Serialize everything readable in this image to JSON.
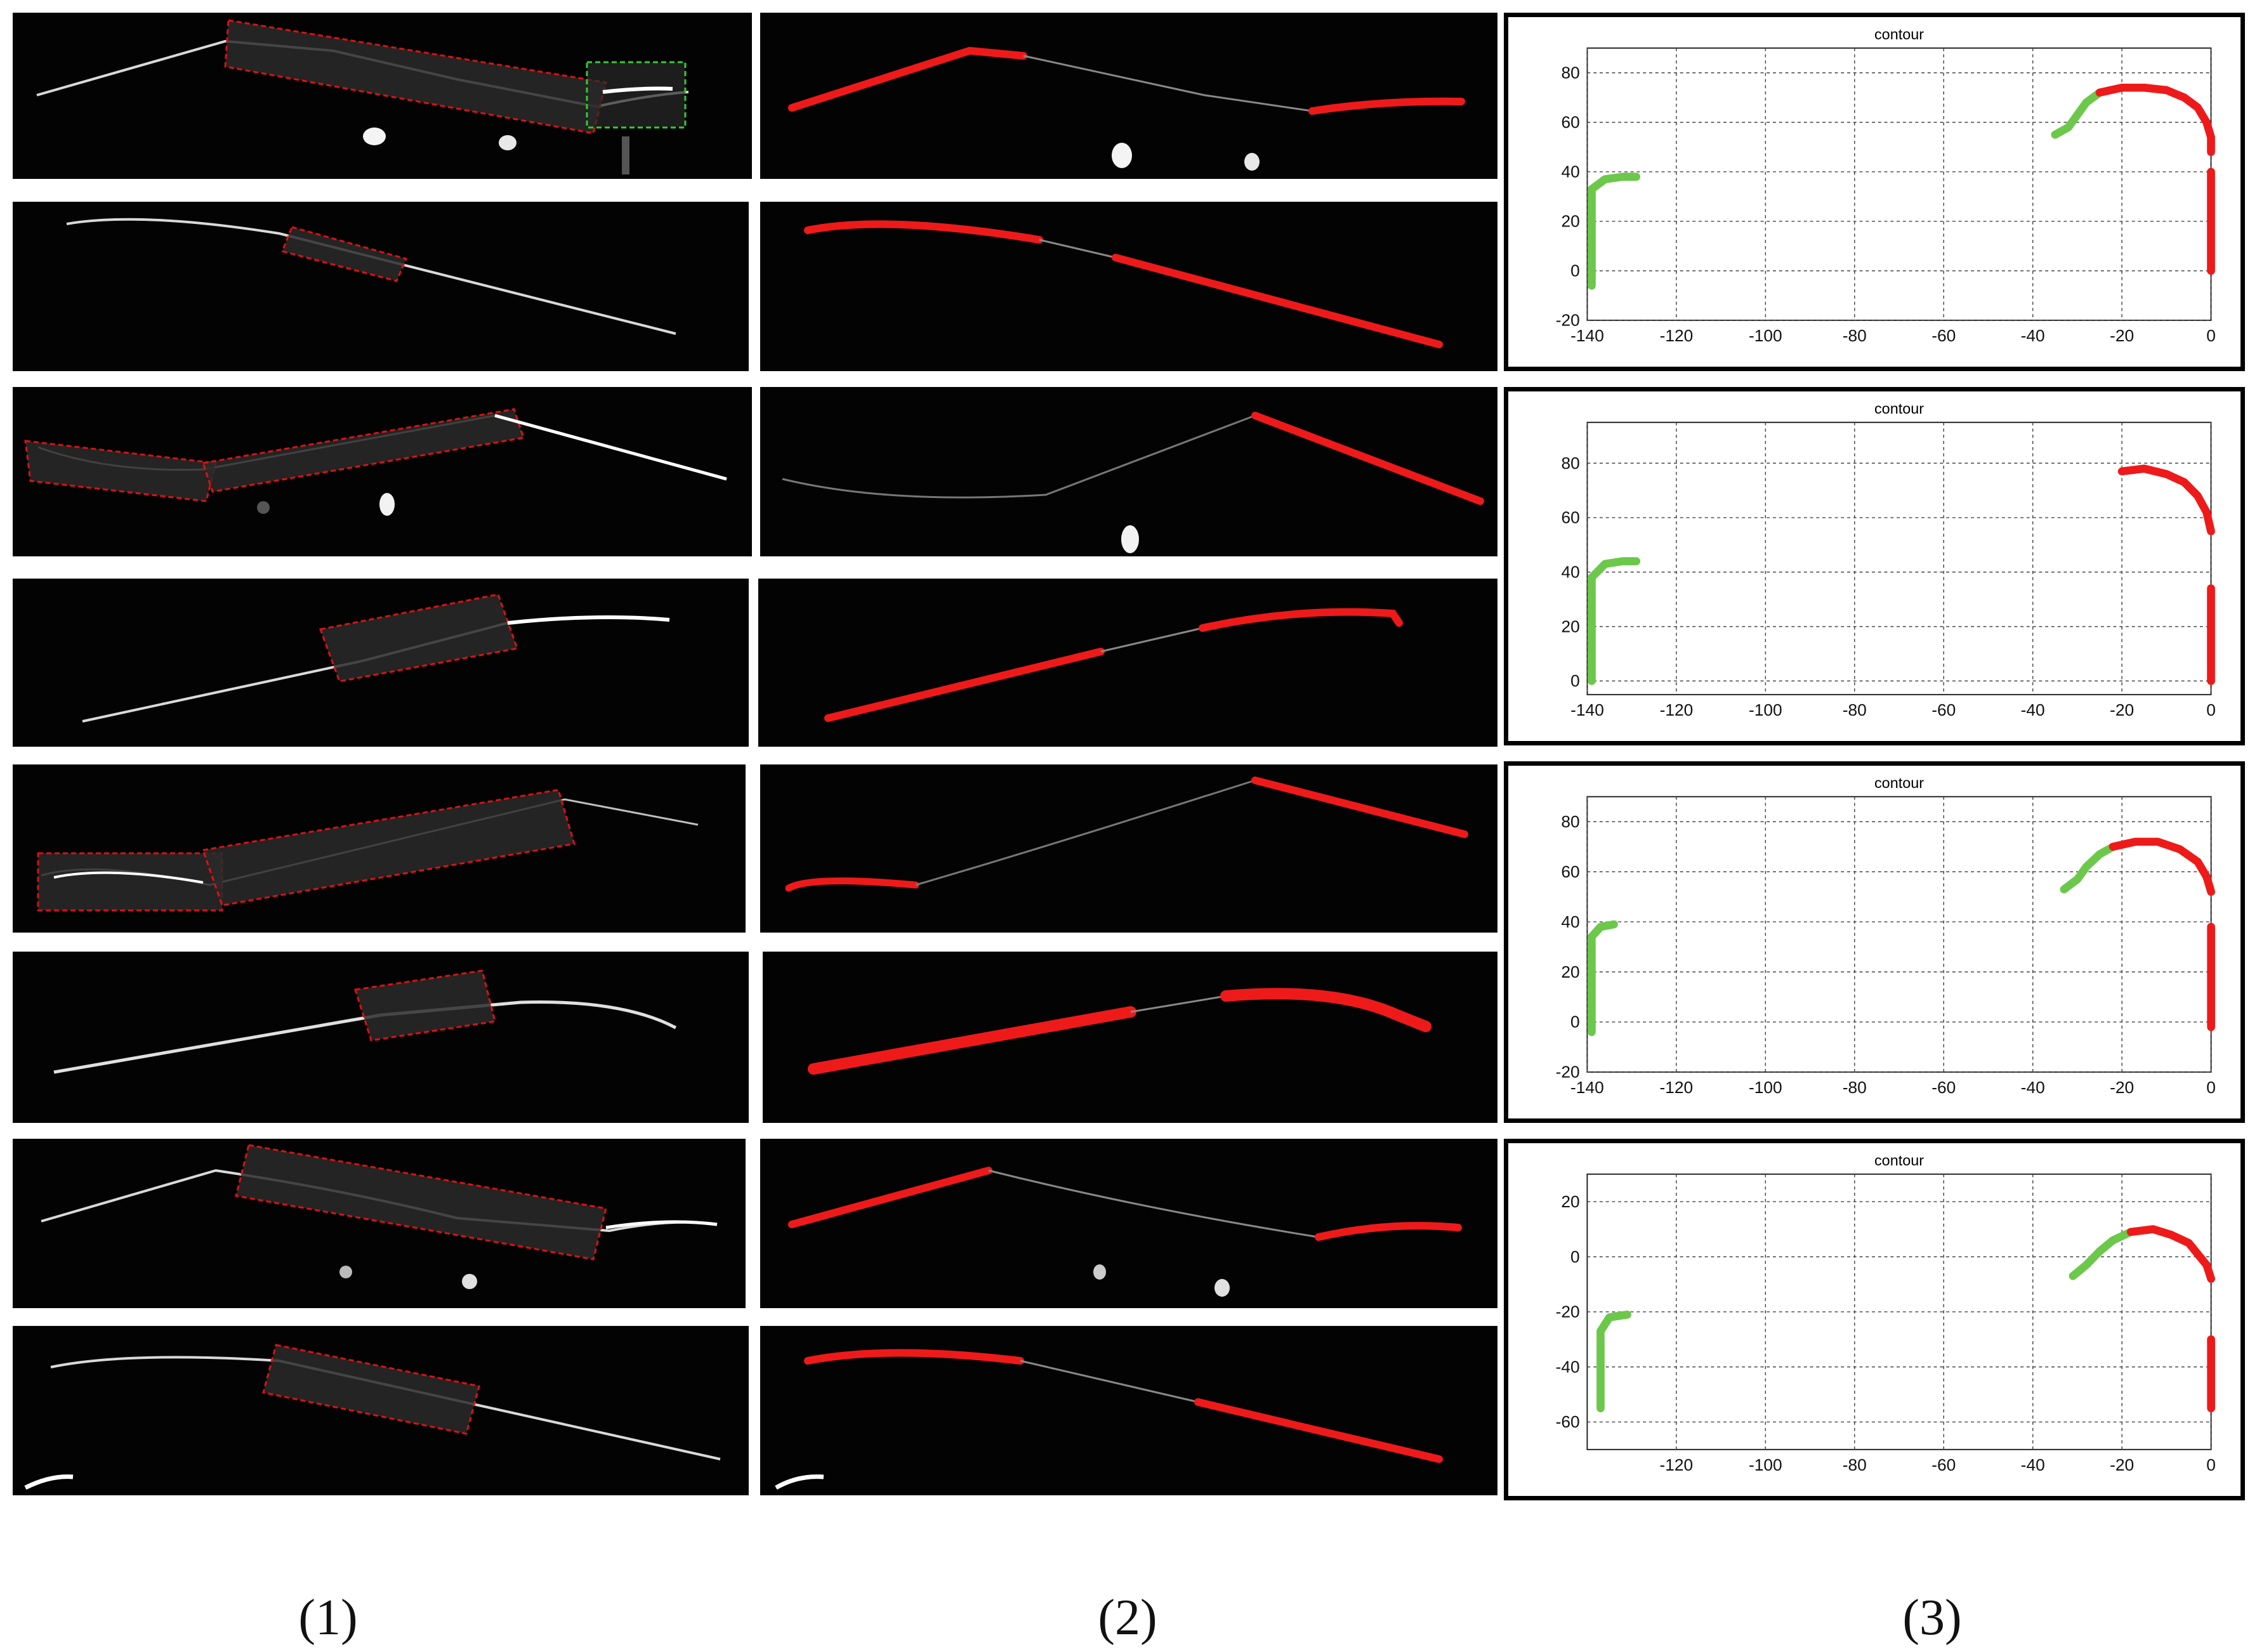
{
  "colors": {
    "background": "#030303",
    "wire": "#d9d9d9",
    "detected": "#ee1a1a",
    "tracked": "#6cc84a",
    "roi_box": "#d11",
    "roi_green": "#3c3"
  },
  "column_labels": [
    "(1)",
    "(2)",
    "(3)"
  ],
  "chart_data": [
    {
      "type": "scatter",
      "title": "contour",
      "xlabel": "",
      "ylabel": "",
      "xlim": [
        -140,
        0
      ],
      "ylim": [
        -20,
        90
      ],
      "x_ticks": [
        -140,
        -120,
        -100,
        -80,
        -60,
        -40,
        -20,
        0
      ],
      "y_ticks": [
        -20,
        0,
        20,
        40,
        60,
        80
      ],
      "tick_labels_x": [
        "-140",
        "-120",
        "-100",
        "-80",
        "-60",
        "-40",
        "-20",
        "0"
      ],
      "tick_labels_y": [
        "-20",
        "0",
        "20",
        "40",
        "60",
        "80"
      ],
      "grid": true,
      "series": [
        {
          "color": "#6cc84a",
          "points": [
            [
              -139,
              -6
            ],
            [
              -139,
              10
            ],
            [
              -139,
              25
            ],
            [
              -139,
              33
            ],
            [
              -136,
              37
            ],
            [
              -132,
              38
            ],
            [
              -129,
              38
            ]
          ]
        },
        {
          "color": "#6cc84a",
          "points": [
            [
              -35,
              55
            ],
            [
              -32,
              58
            ],
            [
              -30,
              63
            ],
            [
              -28,
              68
            ],
            [
              -25,
              72
            ]
          ]
        },
        {
          "color": "#ee1a1a",
          "points": [
            [
              -25,
              72
            ],
            [
              -20,
              74
            ],
            [
              -15,
              74
            ],
            [
              -10,
              73
            ],
            [
              -6,
              70
            ],
            [
              -3,
              66
            ],
            [
              -1,
              60
            ],
            [
              0,
              54
            ],
            [
              0,
              48
            ]
          ]
        },
        {
          "color": "#ee1a1a",
          "points": [
            [
              0,
              40
            ],
            [
              0,
              30
            ],
            [
              0,
              20
            ],
            [
              0,
              10
            ],
            [
              0,
              0
            ]
          ]
        }
      ]
    },
    {
      "type": "scatter",
      "title": "contour",
      "xlabel": "",
      "ylabel": "",
      "xlim": [
        -140,
        0
      ],
      "ylim": [
        -5,
        95
      ],
      "x_ticks": [
        -140,
        -120,
        -100,
        -80,
        -60,
        -40,
        -20,
        0
      ],
      "y_ticks": [
        0,
        20,
        40,
        60,
        80
      ],
      "tick_labels_x": [
        "-140",
        "-120",
        "-100",
        "-80",
        "-60",
        "-40",
        "-20",
        "0"
      ],
      "tick_labels_y": [
        "0",
        "20",
        "40",
        "60",
        "80"
      ],
      "grid": true,
      "series": [
        {
          "color": "#6cc84a",
          "points": [
            [
              -139,
              0
            ],
            [
              -139,
              12
            ],
            [
              -139,
              25
            ],
            [
              -139,
              38
            ],
            [
              -136,
              43
            ],
            [
              -132,
              44
            ],
            [
              -129,
              44
            ]
          ]
        },
        {
          "color": "#ee1a1a",
          "points": [
            [
              -20,
              77
            ],
            [
              -15,
              78
            ],
            [
              -10,
              76
            ],
            [
              -6,
              73
            ],
            [
              -3,
              68
            ],
            [
              -1,
              62
            ],
            [
              0,
              55
            ]
          ]
        },
        {
          "color": "#ee1a1a",
          "points": [
            [
              0,
              34
            ],
            [
              0,
              24
            ],
            [
              0,
              12
            ],
            [
              0,
              0
            ]
          ]
        }
      ]
    },
    {
      "type": "scatter",
      "title": "contour",
      "xlabel": "",
      "ylabel": "",
      "xlim": [
        -140,
        0
      ],
      "ylim": [
        -20,
        90
      ],
      "x_ticks": [
        -140,
        -120,
        -100,
        -80,
        -60,
        -40,
        -20,
        0
      ],
      "y_ticks": [
        -20,
        0,
        20,
        40,
        60,
        80
      ],
      "tick_labels_x": [
        "-140",
        "-120",
        "-100",
        "-80",
        "-60",
        "-40",
        "-20",
        "0"
      ],
      "tick_labels_y": [
        "-20",
        "0",
        "20",
        "40",
        "60",
        "80"
      ],
      "grid": true,
      "series": [
        {
          "color": "#6cc84a",
          "points": [
            [
              -139,
              -4
            ],
            [
              -139,
              10
            ],
            [
              -139,
              22
            ],
            [
              -139,
              34
            ],
            [
              -137,
              38
            ],
            [
              -134,
              39
            ]
          ]
        },
        {
          "color": "#6cc84a",
          "points": [
            [
              -33,
              53
            ],
            [
              -30,
              57
            ],
            [
              -28,
              62
            ],
            [
              -25,
              67
            ],
            [
              -22,
              70
            ]
          ]
        },
        {
          "color": "#ee1a1a",
          "points": [
            [
              -22,
              70
            ],
            [
              -17,
              72
            ],
            [
              -12,
              72
            ],
            [
              -7,
              69
            ],
            [
              -3,
              64
            ],
            [
              -1,
              58
            ],
            [
              0,
              52
            ]
          ]
        },
        {
          "color": "#ee1a1a",
          "points": [
            [
              0,
              38
            ],
            [
              0,
              26
            ],
            [
              0,
              14
            ],
            [
              0,
              0
            ],
            [
              0,
              -2
            ]
          ]
        }
      ]
    },
    {
      "type": "scatter",
      "title": "contour",
      "xlabel": "",
      "ylabel": "",
      "xlim": [
        -140,
        0
      ],
      "ylim": [
        -70,
        30
      ],
      "x_ticks": [
        -120,
        -100,
        -80,
        -60,
        -40,
        -20,
        0
      ],
      "y_ticks": [
        -60,
        -40,
        -20,
        0,
        20
      ],
      "tick_labels_x": [
        "-120",
        "-100",
        "-80",
        "-60",
        "-40",
        "-20",
        "0"
      ],
      "tick_labels_y": [
        "-60",
        "-40",
        "-20",
        "0",
        "20"
      ],
      "grid": true,
      "series": [
        {
          "color": "#6cc84a",
          "points": [
            [
              -137,
              -55
            ],
            [
              -137,
              -45
            ],
            [
              -137,
              -35
            ],
            [
              -137,
              -27
            ],
            [
              -135,
              -22
            ],
            [
              -131,
              -21
            ]
          ]
        },
        {
          "color": "#6cc84a",
          "points": [
            [
              -31,
              -7
            ],
            [
              -28,
              -3
            ],
            [
              -25,
              2
            ],
            [
              -22,
              6
            ],
            [
              -18,
              9
            ]
          ]
        },
        {
          "color": "#ee1a1a",
          "points": [
            [
              -18,
              9
            ],
            [
              -13,
              10
            ],
            [
              -9,
              8
            ],
            [
              -5,
              5
            ],
            [
              -3,
              1
            ],
            [
              -1,
              -3
            ],
            [
              0,
              -8
            ]
          ]
        },
        {
          "color": "#ee1a1a",
          "points": [
            [
              0,
              -30
            ],
            [
              0,
              -40
            ],
            [
              0,
              -50
            ],
            [
              0,
              -55
            ]
          ]
        }
      ]
    }
  ]
}
